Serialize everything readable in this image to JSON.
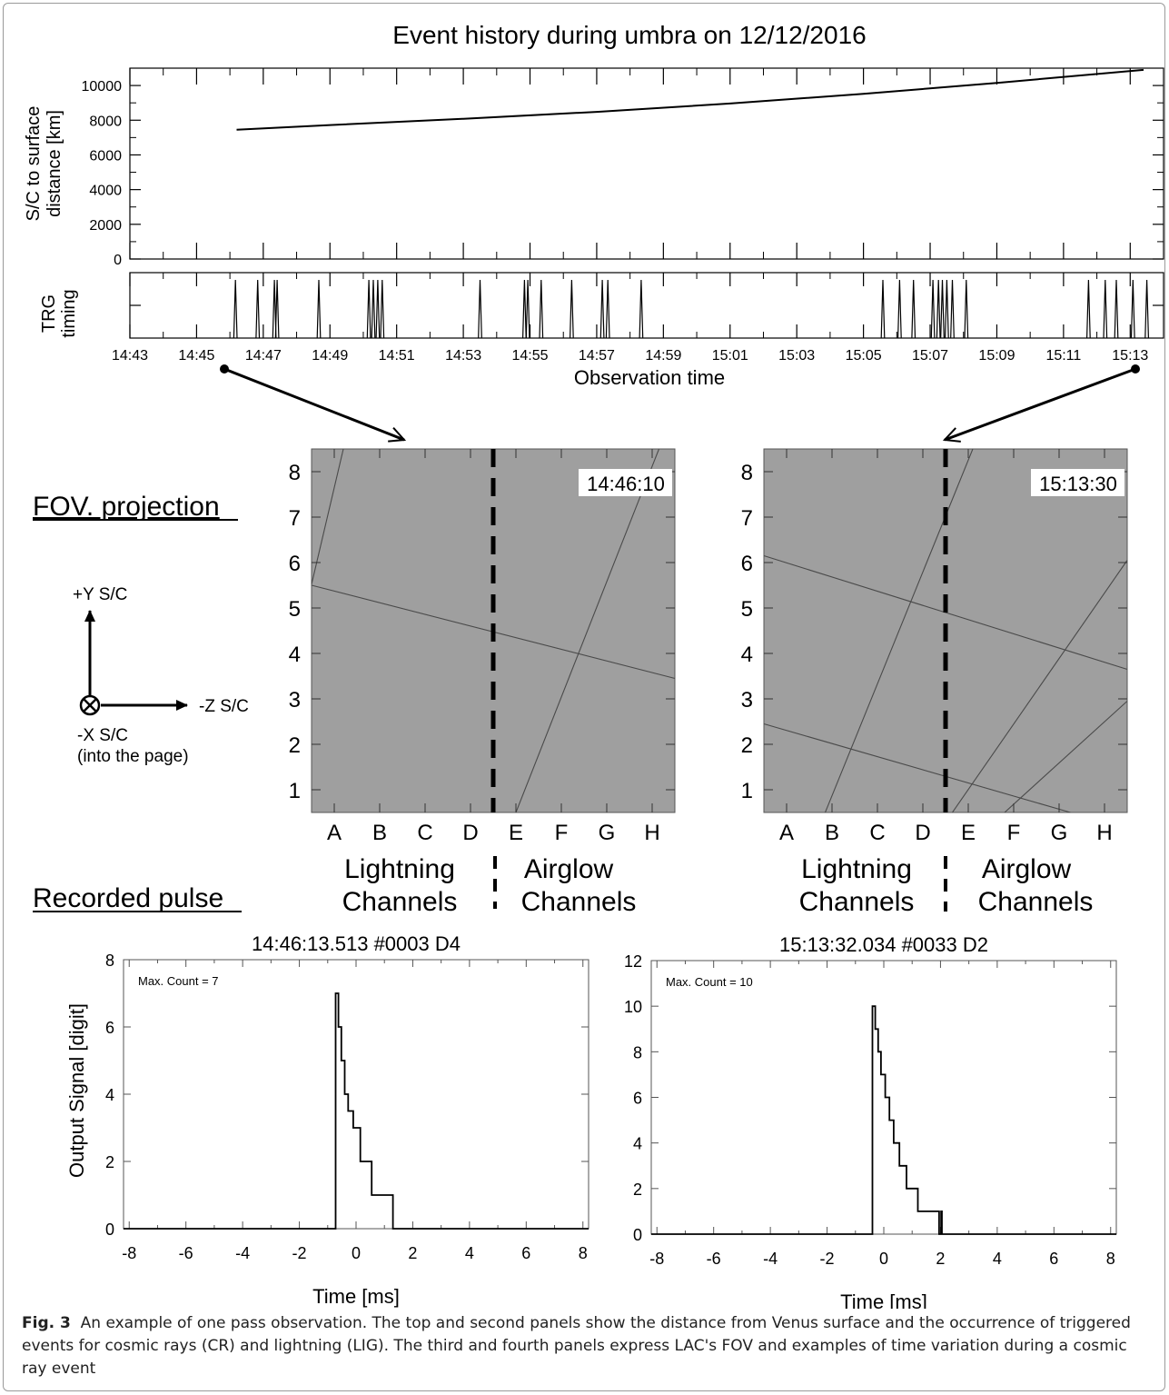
{
  "figure": {
    "title": "Event history during umbra on 12/12/2016",
    "top_panel": {
      "ylabel_line1": "S/C to surface",
      "ylabel_line2": "distance [km]"
    },
    "trg_panel": {
      "ylabel_line1": "TRG",
      "ylabel_line2": "timing",
      "xlabel": "Observation time"
    },
    "fov": {
      "section_label": "FOV. projection",
      "left_timestamp": "14:46:10",
      "right_timestamp": "15:13:30",
      "row_labels": [
        "1",
        "2",
        "3",
        "4",
        "5",
        "6",
        "7",
        "8"
      ],
      "col_labels": [
        "A",
        "B",
        "C",
        "D",
        "E",
        "F",
        "G",
        "H"
      ],
      "lightning_line1": "Lightning",
      "lightning_line2": "Channels",
      "airglow_line1": "Airglow",
      "airglow_line2": "Channels",
      "axes_legend": {
        "plus_y": "+Y S/C",
        "minus_z": "-Z S/C",
        "minus_x": "-X S/C",
        "into_page": "(into the page)"
      }
    },
    "pulse": {
      "section_label": "Recorded pulse",
      "ylabel": "Output Signal [digit]",
      "xlabel": "Time [ms]",
      "left_title": "14:46:13.513 #0003 D4",
      "right_title": "15:13:32.034 #0033 D2",
      "left_maxcount": "Max. Count =  7",
      "right_maxcount": "Max. Count = 10"
    }
  },
  "caption": {
    "label": "Fig. 3",
    "text": "An example of one pass observation. The top and second panels show the distance from Venus surface and the occurrence of triggered events for cosmic rays (CR) and lightning (LIG). The third and fourth panels express LAC's FOV and examples of time variation during a cosmic ray event"
  },
  "chart_data": [
    {
      "type": "line",
      "panel": "distance",
      "x_unit": "min since 14:43",
      "ylabel": "S/C to surface distance [km]",
      "ylim": [
        0,
        11000
      ],
      "yticks": [
        0,
        2000,
        4000,
        6000,
        8000,
        10000
      ],
      "x": [
        3.2,
        6,
        10,
        14,
        18,
        22,
        26,
        30.4
      ],
      "y": [
        7450,
        7720,
        8080,
        8480,
        8960,
        9520,
        10150,
        10900
      ]
    },
    {
      "type": "line",
      "panel": "trg_timing",
      "xlabel": "Observation time",
      "xlim": [
        "14:43",
        "15:14"
      ],
      "xticks": [
        "14:43",
        "14:45",
        "14:47",
        "14:49",
        "14:51",
        "14:53",
        "14:55",
        "14:57",
        "14:59",
        "15:01",
        "15:03",
        "15:05",
        "15:07",
        "15:09",
        "15:11",
        "15:13"
      ],
      "events": [
        "14:46:10",
        "14:46:50",
        "14:47:20",
        "14:47:25",
        "14:48:40",
        "14:50:10",
        "14:50:18",
        "14:50:26",
        "14:50:34",
        "14:53:30",
        "14:54:50",
        "14:54:56",
        "14:55:20",
        "14:56:15",
        "14:57:10",
        "14:57:20",
        "14:58:20",
        "15:05:35",
        "15:06:05",
        "15:06:30",
        "15:07:05",
        "15:07:15",
        "15:07:22",
        "15:07:30",
        "15:07:40",
        "15:08:05",
        "15:11:45",
        "15:12:15",
        "15:12:35",
        "15:13:05",
        "15:13:30"
      ]
    },
    {
      "type": "line",
      "panel": "fov_left",
      "timestamp": "14:46:10",
      "xlim": [
        0.5,
        8.5
      ],
      "ylim": [
        0.5,
        8.5
      ],
      "xticks": [
        "A",
        "B",
        "C",
        "D",
        "E",
        "F",
        "G",
        "H"
      ],
      "yticks": [
        1,
        2,
        3,
        4,
        5,
        6,
        7,
        8
      ],
      "grid_lines": [
        [
          [
            0.5,
            5.5
          ],
          [
            8.5,
            3.45
          ]
        ],
        [
          [
            0.5,
            5.52
          ],
          [
            1.2,
            8.5
          ]
        ],
        [
          [
            5.0,
            0.5
          ],
          [
            8.15,
            8.5
          ]
        ]
      ],
      "boundary_x": 4.5
    },
    {
      "type": "line",
      "panel": "fov_right",
      "timestamp": "15:13:30",
      "xlim": [
        0.5,
        8.5
      ],
      "ylim": [
        0.5,
        8.5
      ],
      "xticks": [
        "A",
        "B",
        "C",
        "D",
        "E",
        "F",
        "G",
        "H"
      ],
      "yticks": [
        1,
        2,
        3,
        4,
        5,
        6,
        7,
        8
      ],
      "grid_lines": [
        [
          [
            0.5,
            6.15
          ],
          [
            8.5,
            3.65
          ]
        ],
        [
          [
            0.5,
            2.45
          ],
          [
            7.25,
            0.5
          ]
        ],
        [
          [
            1.85,
            0.5
          ],
          [
            5.1,
            8.5
          ]
        ],
        [
          [
            4.65,
            0.5
          ],
          [
            8.5,
            6.05
          ]
        ],
        [
          [
            5.8,
            0.5
          ],
          [
            8.5,
            2.95
          ]
        ]
      ],
      "boundary_x": 4.5
    },
    {
      "type": "line",
      "panel": "pulse_left",
      "title": "14:46:13.513 #0003 D4",
      "xlabel": "Time [ms]",
      "ylabel": "Output Signal [digit]",
      "xlim": [
        -8.2,
        8.2
      ],
      "ylim": [
        0,
        8
      ],
      "xticks": [
        -8,
        -6,
        -4,
        -2,
        0,
        2,
        4,
        6,
        8
      ],
      "yticks": [
        0,
        2,
        4,
        6,
        8
      ],
      "x": [
        -8.2,
        -0.72,
        -0.72,
        -0.62,
        -0.62,
        -0.52,
        -0.52,
        -0.4,
        -0.4,
        -0.28,
        -0.28,
        -0.1,
        -0.1,
        0.15,
        0.15,
        0.55,
        0.55,
        1.3,
        1.3,
        8.2
      ],
      "y": [
        0,
        0,
        7,
        7,
        6,
        6,
        5,
        5,
        4,
        4,
        3.5,
        3.5,
        3,
        3,
        2,
        2,
        1,
        1,
        0,
        0
      ]
    },
    {
      "type": "line",
      "panel": "pulse_right",
      "title": "15:13:32.034 #0033 D2",
      "xlabel": "Time [ms]",
      "ylabel": "Output Signal [digit]",
      "xlim": [
        -8.2,
        8.2
      ],
      "ylim": [
        0,
        12
      ],
      "xticks": [
        -8,
        -6,
        -4,
        -2,
        0,
        2,
        4,
        6,
        8
      ],
      "yticks": [
        0,
        2,
        4,
        6,
        8,
        10,
        12
      ],
      "x": [
        -8.2,
        -0.4,
        -0.4,
        -0.3,
        -0.3,
        -0.2,
        -0.2,
        -0.1,
        -0.1,
        0.05,
        0.05,
        0.2,
        0.2,
        0.35,
        0.35,
        0.55,
        0.55,
        0.8,
        0.8,
        1.2,
        1.2,
        1.95,
        1.95,
        2.02,
        2.02,
        2.05,
        2.05,
        8.2
      ],
      "y": [
        0,
        0,
        10,
        10,
        9,
        9,
        8,
        8,
        7,
        7,
        6,
        6,
        5,
        5,
        4,
        4,
        3,
        3,
        2,
        2,
        1,
        1,
        0,
        0,
        1,
        1,
        0,
        0
      ]
    }
  ]
}
